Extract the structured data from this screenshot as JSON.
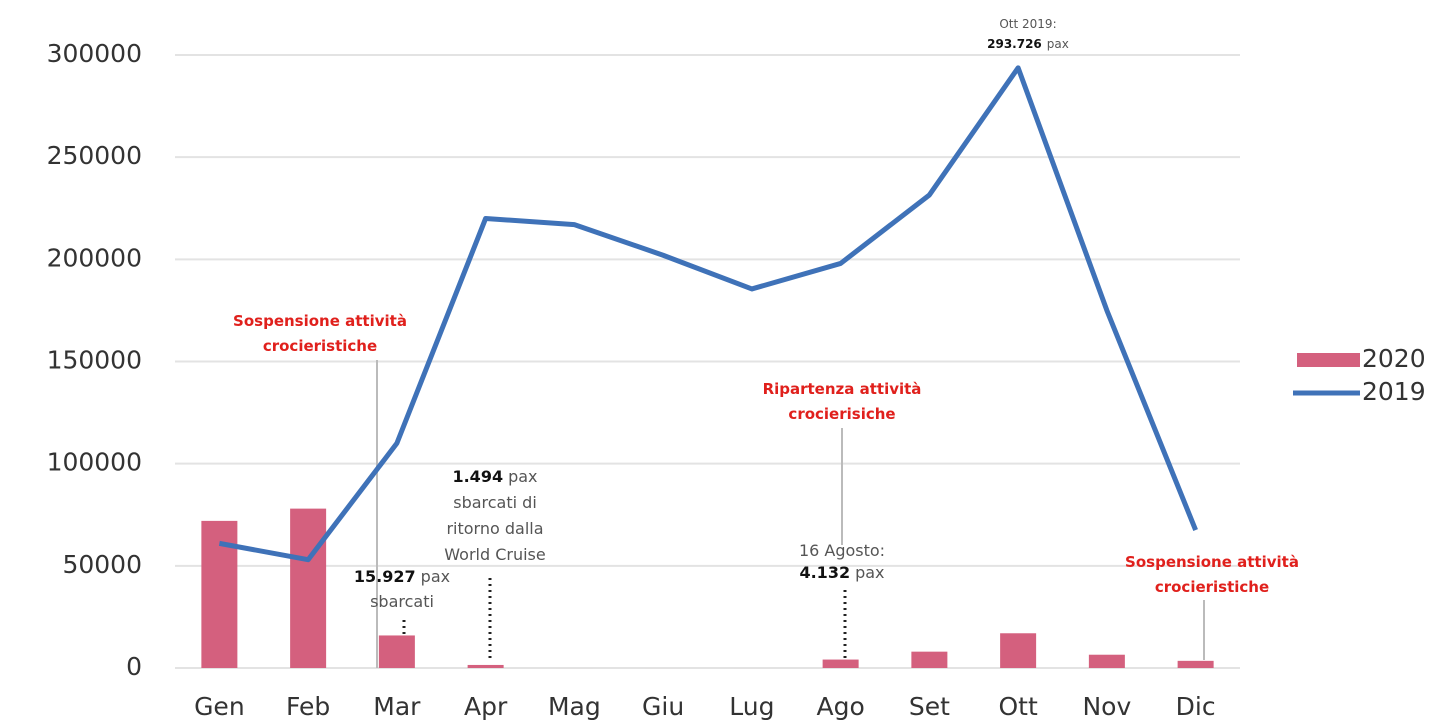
{
  "chart_data": {
    "type": "bar+line",
    "categories": [
      "Gen",
      "Feb",
      "Mar",
      "Apr",
      "Mag",
      "Giu",
      "Lug",
      "Ago",
      "Set",
      "Ott",
      "Nov",
      "Dic"
    ],
    "series": [
      {
        "name": "2020",
        "type": "bar",
        "color": "#d4607e",
        "values": [
          72000,
          78000,
          15927,
          1494,
          0,
          0,
          0,
          4132,
          8000,
          17000,
          6500,
          3500
        ]
      },
      {
        "name": "2019",
        "type": "line",
        "color": "#3f72b8",
        "values": [
          61000,
          53000,
          110000,
          220000,
          217000,
          202000,
          185500,
          198000,
          231500,
          293726,
          175000,
          67500
        ]
      }
    ],
    "ylim": [
      0,
      300000
    ],
    "yticks": [
      0,
      50000,
      100000,
      150000,
      200000,
      250000,
      300000
    ],
    "grid": true,
    "legend": "right",
    "annotations": [
      {
        "color": "#e0201c",
        "lines": [
          [
            "Sospensione attività"
          ],
          [
            "crocieristiche"
          ]
        ]
      },
      {
        "color": "#e0201c",
        "lines": [
          [
            "Ripartenza attività"
          ],
          [
            "crocierisiche"
          ]
        ]
      },
      {
        "color": "#e0201c",
        "lines": [
          [
            "Sospensione attività"
          ],
          [
            "crocieristiche"
          ]
        ]
      },
      {
        "color": "#222222",
        "lines": [
          [
            "15.927",
            "pax"
          ],
          [
            "sbarcati"
          ]
        ]
      },
      {
        "color": "#222222",
        "lines": [
          [
            "1.494",
            "pax"
          ],
          [
            "sbarcati di"
          ],
          [
            "ritorno dalla"
          ],
          [
            "World Cruise"
          ]
        ]
      },
      {
        "color": "#222222",
        "lines": [
          [
            "16 Agosto:"
          ],
          [
            "4.132",
            "pax"
          ]
        ]
      },
      {
        "color": "#222222",
        "lines": [
          [
            "Ott 2019:"
          ],
          [
            "293.726",
            "pax"
          ]
        ]
      }
    ]
  }
}
